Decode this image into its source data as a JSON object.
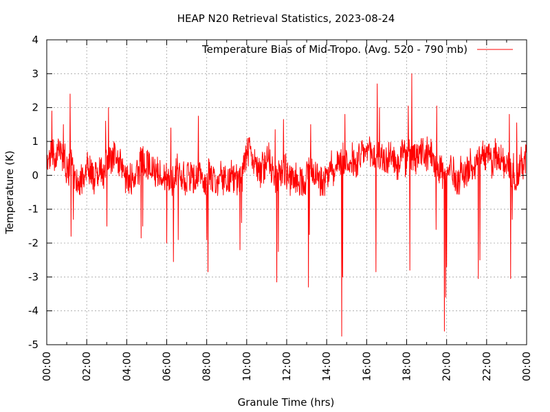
{
  "chart_data": {
    "type": "line",
    "title": "HEAP N20 Retrieval Statistics, 2023-08-24",
    "xlabel": "Granule Time (hrs)",
    "ylabel": "Temperature (K)",
    "xlim": [
      "00:00",
      "24:00"
    ],
    "ylim": [
      -5,
      4
    ],
    "x_ticks": [
      "00:00",
      "02:00",
      "04:00",
      "06:00",
      "08:00",
      "10:00",
      "12:00",
      "14:00",
      "16:00",
      "18:00",
      "20:00",
      "22:00",
      "00:00"
    ],
    "y_ticks": [
      "-5",
      "-4",
      "-3",
      "-2",
      "-1",
      "0",
      "1",
      "2",
      "3",
      "4"
    ],
    "grid": true,
    "legend_position": "top-right",
    "series": [
      {
        "name": "Temperature Bias of Mid-Tropo. (Avg. 520 - 790 mb)",
        "color": "#ff0000",
        "baseline_range": [
          -0.6,
          1.2
        ],
        "extremes": [
          {
            "x": "00:15",
            "y": 1.9
          },
          {
            "x": "00:50",
            "y": 1.5
          },
          {
            "x": "01:10",
            "y": 2.4
          },
          {
            "x": "01:13",
            "y": -1.8
          },
          {
            "x": "01:20",
            "y": -1.3
          },
          {
            "x": "02:57",
            "y": 1.6
          },
          {
            "x": "03:00",
            "y": -1.5
          },
          {
            "x": "03:05",
            "y": 2.0
          },
          {
            "x": "04:43",
            "y": -1.85
          },
          {
            "x": "04:48",
            "y": -1.5
          },
          {
            "x": "06:00",
            "y": -2.0
          },
          {
            "x": "06:12",
            "y": 1.4
          },
          {
            "x": "06:20",
            "y": -2.55
          },
          {
            "x": "06:35",
            "y": -1.9
          },
          {
            "x": "07:35",
            "y": 1.75
          },
          {
            "x": "08:00",
            "y": -1.9
          },
          {
            "x": "08:04",
            "y": -2.85
          },
          {
            "x": "09:40",
            "y": -2.2
          },
          {
            "x": "09:45",
            "y": -1.4
          },
          {
            "x": "11:25",
            "y": 1.35
          },
          {
            "x": "11:30",
            "y": -3.15
          },
          {
            "x": "11:35",
            "y": -2.25
          },
          {
            "x": "11:50",
            "y": 1.65
          },
          {
            "x": "13:05",
            "y": -3.3
          },
          {
            "x": "13:08",
            "y": -1.75
          },
          {
            "x": "13:12",
            "y": 1.5
          },
          {
            "x": "14:45",
            "y": -4.75
          },
          {
            "x": "14:48",
            "y": -3.0
          },
          {
            "x": "14:55",
            "y": 1.8
          },
          {
            "x": "16:28",
            "y": -2.85
          },
          {
            "x": "16:32",
            "y": 2.7
          },
          {
            "x": "16:38",
            "y": 2.0
          },
          {
            "x": "18:05",
            "y": 2.05
          },
          {
            "x": "18:10",
            "y": -2.8
          },
          {
            "x": "18:15",
            "y": 3.0
          },
          {
            "x": "19:30",
            "y": 2.05
          },
          {
            "x": "19:28",
            "y": -1.6
          },
          {
            "x": "19:53",
            "y": -4.6
          },
          {
            "x": "19:57",
            "y": -3.6
          },
          {
            "x": "20:00",
            "y": -2.7
          },
          {
            "x": "21:35",
            "y": -3.05
          },
          {
            "x": "21:40",
            "y": -2.5
          },
          {
            "x": "23:08",
            "y": 1.8
          },
          {
            "x": "23:12",
            "y": -3.05
          },
          {
            "x": "23:17",
            "y": -1.3
          },
          {
            "x": "23:30",
            "y": 1.55
          }
        ]
      }
    ]
  }
}
